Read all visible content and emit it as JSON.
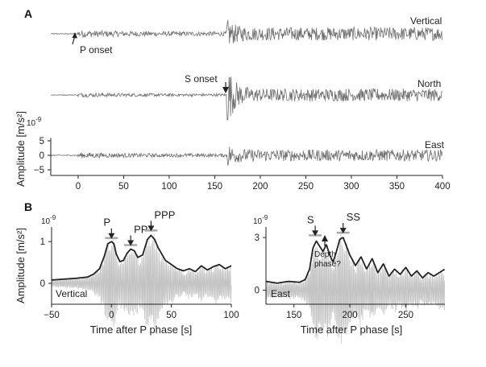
{
  "colors": {
    "trace": "#6f6f6f",
    "raw_trace": "#c4c4c4",
    "envelope": "#222222",
    "marker": "#a8a8a8",
    "axis": "#222222"
  },
  "chart_data": [
    {
      "type": "line",
      "panel_label": "A",
      "ylabel": "Amplitude [m/s²]",
      "y_exponent": "10-9",
      "xlim": [
        -30,
        400
      ],
      "x_ticks": [
        0,
        50,
        100,
        150,
        200,
        250,
        300,
        350,
        400
      ],
      "x_tick_labels": [
        "0",
        "50",
        "100",
        "150",
        "200",
        "250",
        "300",
        "350",
        "400"
      ],
      "ylim": [
        -6,
        6
      ],
      "y_ticks": [
        5,
        0,
        -5
      ],
      "y_tick_labels": [
        "5",
        "0",
        "−5"
      ],
      "series": [
        {
          "name": "Vertical",
          "p_onset": 0,
          "s_onset": 163,
          "noise_amp": 0.15,
          "p_coda_amp": 1.3,
          "s_peak_amp": 5.5,
          "s_coda_amp": 2.3
        },
        {
          "name": "North",
          "p_onset": 0,
          "s_onset": 163,
          "noise_amp": 0.12,
          "p_coda_amp": 0.8,
          "s_peak_amp": 12.0,
          "s_coda_amp": 2.2
        },
        {
          "name": "East",
          "p_onset": 0,
          "s_onset": 163,
          "noise_amp": 0.2,
          "p_coda_amp": 1.0,
          "s_peak_amp": 4.5,
          "s_coda_amp": 2.0
        }
      ],
      "annotations": [
        {
          "text": "P onset",
          "x": 0,
          "trace": "Vertical"
        },
        {
          "text": "S onset",
          "x": 163,
          "trace": "North"
        }
      ]
    },
    {
      "type": "line",
      "panel_label": "B",
      "ylabel": "Amplitude [m/s²]",
      "y_exponent": "10-9",
      "xlabel": "Time after P phase [s]",
      "xlim": [
        -50,
        100
      ],
      "x_ticks": [
        -50,
        0,
        50,
        100
      ],
      "x_tick_labels": [
        "−50",
        "0",
        "50",
        "100"
      ],
      "ylim": [
        -0.5,
        1.35
      ],
      "y_ticks": [
        1,
        0
      ],
      "y_tick_labels": [
        "1",
        "0"
      ],
      "component": "Vertical",
      "envelope": {
        "x": [
          -50,
          -40,
          -30,
          -20,
          -15,
          -10,
          -6,
          -3,
          0,
          2,
          4,
          7,
          10,
          13,
          16,
          19,
          22,
          26,
          30,
          33,
          36,
          39,
          42,
          45,
          50,
          55,
          60,
          65,
          70,
          75,
          80,
          85,
          90,
          95,
          100
        ],
        "y": [
          0.08,
          0.1,
          0.12,
          0.15,
          0.22,
          0.35,
          0.65,
          0.95,
          1.0,
          0.95,
          0.7,
          0.52,
          0.55,
          0.72,
          0.82,
          0.78,
          0.62,
          0.68,
          1.05,
          1.15,
          1.05,
          0.85,
          0.7,
          0.55,
          0.45,
          0.35,
          0.3,
          0.35,
          0.28,
          0.42,
          0.32,
          0.4,
          0.45,
          0.35,
          0.42
        ]
      },
      "phases": [
        {
          "name": "P",
          "x": 0,
          "y": 0.97
        },
        {
          "name": "PP",
          "x": 16,
          "y": 0.8
        },
        {
          "name": "PPP",
          "x": 33,
          "y": 1.15
        }
      ]
    },
    {
      "type": "line",
      "ylim": [
        -0.8,
        3.6
      ],
      "y_ticks": [
        3,
        0
      ],
      "y_tick_labels": [
        "3",
        "0"
      ],
      "y_exponent": "10-9",
      "xlabel": "Time after P phase [s]",
      "xlim": [
        125,
        285
      ],
      "x_ticks": [
        150,
        200,
        250
      ],
      "x_tick_labels": [
        "150",
        "200",
        "250"
      ],
      "component": "East",
      "envelope": {
        "x": [
          125,
          135,
          145,
          155,
          160,
          164,
          167,
          170,
          173,
          176,
          179,
          182,
          185,
          188,
          191,
          194,
          197,
          200,
          205,
          210,
          215,
          220,
          225,
          230,
          235,
          240,
          245,
          250,
          255,
          260,
          265,
          270,
          275,
          280,
          285
        ],
        "y": [
          0.5,
          0.4,
          0.5,
          0.45,
          0.6,
          1.2,
          2.4,
          2.8,
          2.5,
          2.2,
          2.6,
          2.0,
          1.6,
          2.2,
          2.9,
          3.0,
          2.5,
          2.0,
          1.4,
          1.9,
          1.2,
          1.8,
          1.0,
          1.5,
          0.8,
          1.2,
          0.9,
          1.3,
          0.8,
          1.1,
          0.7,
          1.0,
          0.8,
          1.0,
          1.2
        ]
      },
      "phases": [
        {
          "name": "S",
          "x": 169,
          "y": 2.85
        },
        {
          "name": "SS",
          "x": 194,
          "y": 3.0
        }
      ],
      "annotations": [
        {
          "text": "Depth\nphase?",
          "x": 179,
          "y": 2.3
        }
      ]
    }
  ]
}
